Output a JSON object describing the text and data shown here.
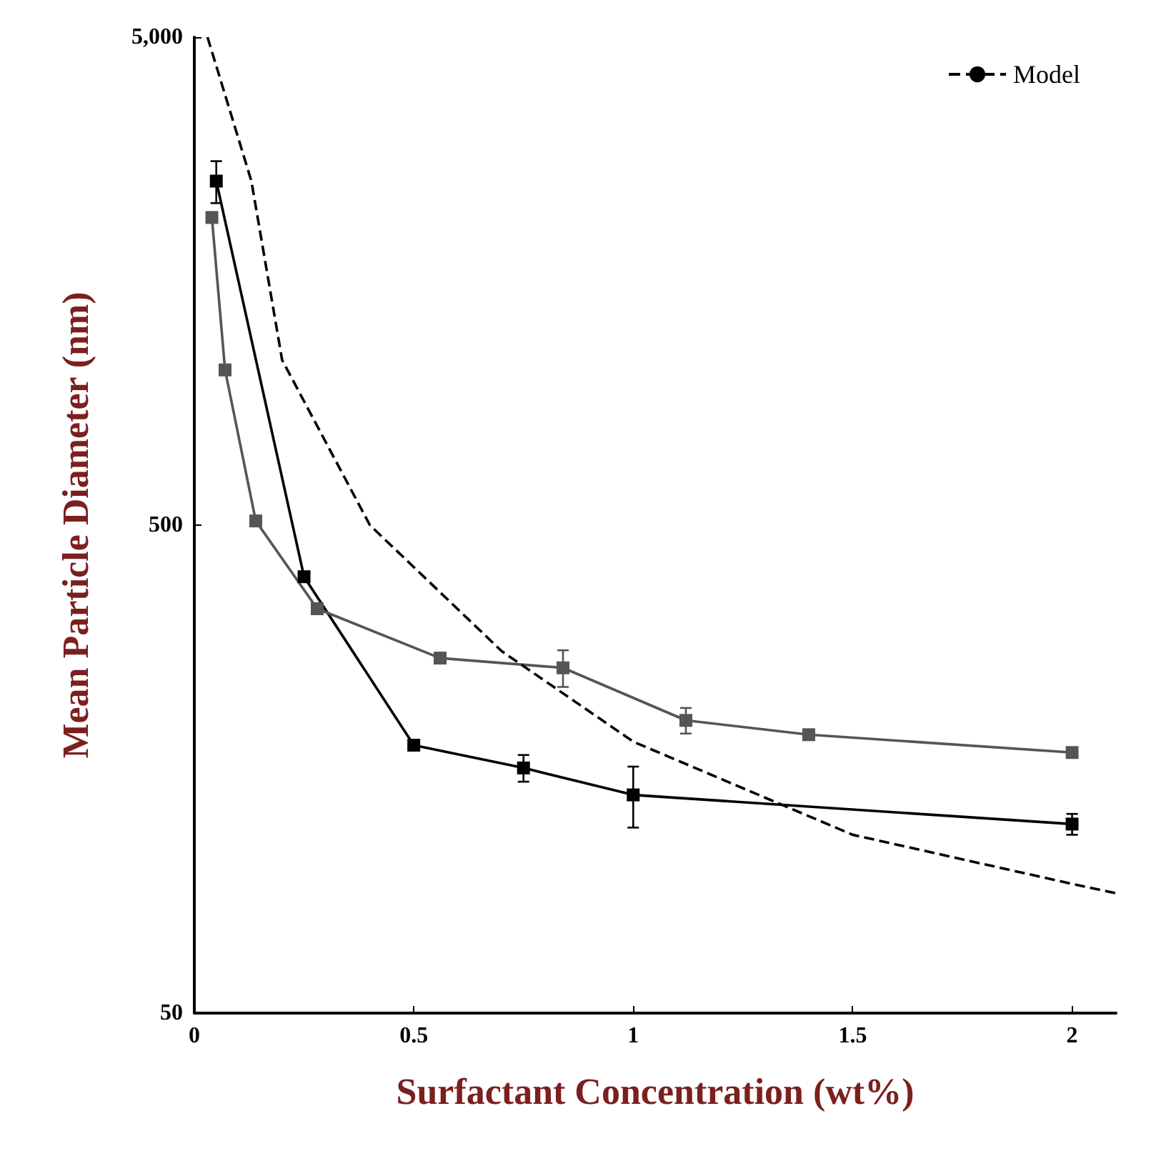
{
  "chart_data": {
    "type": "line",
    "xlabel": "Surfactant Concentration (wt%)",
    "ylabel": "Mean Particle Diameter (nm)",
    "xlim": [
      0,
      2.1
    ],
    "xticks": [
      0,
      0.5,
      1,
      1.5,
      2
    ],
    "ylim": [
      50,
      5000
    ],
    "yticks": [
      50,
      500,
      {
        "value": 5000,
        "label": "5,000"
      }
    ],
    "log": "y",
    "grid": false,
    "legend": "top right",
    "marker": "square",
    "series": [
      {
        "color": "#000000",
        "x": [
          0.05,
          0.25,
          0.5,
          0.75,
          1.0,
          2.0
        ],
        "values": [
          2535,
          392,
          177,
          159,
          140,
          122
        ],
        "errors": [
          250,
          null,
          null,
          10,
          20,
          6
        ]
      },
      {
        "color": "#555555",
        "x": [
          0.04,
          0.07,
          0.14,
          0.28,
          0.56,
          0.84,
          1.12,
          1.4,
          2.0
        ],
        "values": [
          2135,
          1040,
          510,
          337,
          267,
          255,
          199,
          186,
          171
        ],
        "errors": [
          null,
          null,
          null,
          null,
          null,
          22,
          12,
          null,
          null
        ]
      },
      {
        "name": "Model",
        "color": "#000000",
        "marker": "none",
        "line_style": "dashed",
        "x": [
          0.03,
          0.13,
          0.2,
          0.4,
          0.7,
          1.0,
          1.5,
          2.0,
          2.1
        ],
        "values": [
          5000,
          2535,
          1090,
          500,
          276,
          180,
          116,
          92,
          88
        ]
      }
    ]
  }
}
